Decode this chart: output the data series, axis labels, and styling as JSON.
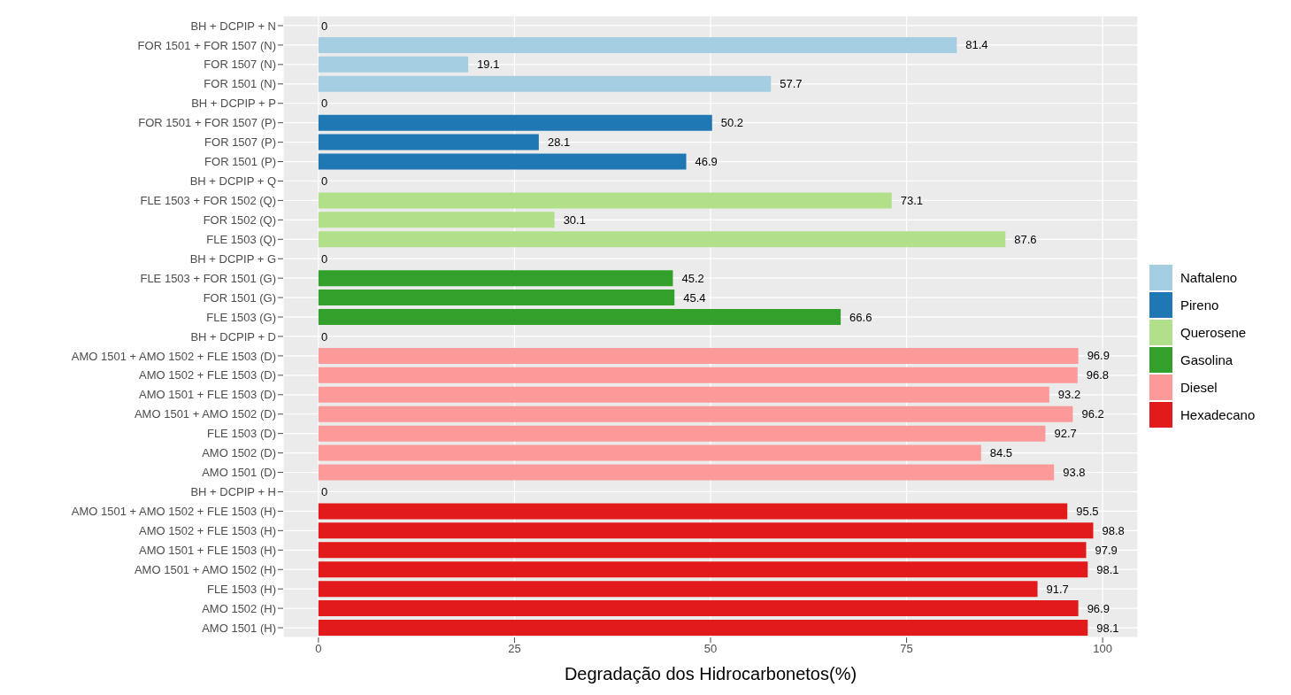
{
  "chart_data": {
    "type": "bar",
    "orientation": "horizontal",
    "xlabel": "Degradação dos Hidrocarbonetos(%)",
    "categories": [
      "BH + DCPIP + N",
      "FOR 1501 + FOR 1507 (N)",
      "FOR 1507 (N)",
      "FOR 1501 (N)",
      "BH + DCPIP + P",
      "FOR 1501 + FOR 1507 (P)",
      "FOR 1507 (P)",
      "FOR 1501 (P)",
      "BH + DCPIP + Q",
      "FLE 1503 + FOR 1502 (Q)",
      "FOR 1502 (Q)",
      "FLE 1503 (Q)",
      "BH + DCPIP + G",
      "FLE 1503 + FOR 1501 (G)",
      "FOR 1501 (G)",
      "FLE 1503 (G)",
      "BH + DCPIP + D",
      "AMO 1501 + AMO 1502 + FLE 1503 (D)",
      "AMO 1502 + FLE 1503 (D)",
      "AMO 1501 + FLE 1503 (D)",
      "AMO 1501 + AMO 1502 (D)",
      "FLE 1503 (D)",
      "AMO 1502 (D)",
      "AMO 1501 (D)",
      "BH + DCPIP + H",
      "AMO 1501 + AMO 1502 + FLE 1503 (H)",
      "AMO 1502 + FLE 1503 (H)",
      "AMO 1501 + FLE 1503 (H)",
      "AMO 1501 + AMO 1502 (H)",
      "FLE 1503 (H)",
      "AMO 1502 (H)",
      "AMO 1501 (H)"
    ],
    "series": [
      {
        "name": "Naftaleno",
        "color": "#a6cee3",
        "values": [
          0,
          81.4,
          19.1,
          57.7,
          null,
          null,
          null,
          null,
          null,
          null,
          null,
          null,
          null,
          null,
          null,
          null,
          null,
          null,
          null,
          null,
          null,
          null,
          null,
          null,
          null,
          null,
          null,
          null,
          null,
          null,
          null,
          null
        ]
      },
      {
        "name": "Pireno",
        "color": "#1f78b4",
        "values": [
          null,
          null,
          null,
          null,
          0,
          50.2,
          28.1,
          46.9,
          null,
          null,
          null,
          null,
          null,
          null,
          null,
          null,
          null,
          null,
          null,
          null,
          null,
          null,
          null,
          null,
          null,
          null,
          null,
          null,
          null,
          null,
          null,
          null
        ]
      },
      {
        "name": "Querosene",
        "color": "#b2df8a",
        "values": [
          null,
          null,
          null,
          null,
          null,
          null,
          null,
          null,
          0,
          73.1,
          30.1,
          87.6,
          null,
          null,
          null,
          null,
          null,
          null,
          null,
          null,
          null,
          null,
          null,
          null,
          null,
          null,
          null,
          null,
          null,
          null,
          null,
          null
        ]
      },
      {
        "name": "Gasolina",
        "color": "#33a02c",
        "values": [
          null,
          null,
          null,
          null,
          null,
          null,
          null,
          null,
          null,
          null,
          null,
          null,
          0,
          45.2,
          45.4,
          66.6,
          null,
          null,
          null,
          null,
          null,
          null,
          null,
          null,
          null,
          null,
          null,
          null,
          null,
          null,
          null,
          null
        ]
      },
      {
        "name": "Diesel",
        "color": "#fb9a99",
        "values": [
          null,
          null,
          null,
          null,
          null,
          null,
          null,
          null,
          null,
          null,
          null,
          null,
          null,
          null,
          null,
          null,
          0,
          96.9,
          96.8,
          93.2,
          96.2,
          92.7,
          84.5,
          93.8,
          null,
          null,
          null,
          null,
          null,
          null,
          null,
          null
        ]
      },
      {
        "name": "Hexadecano",
        "color": "#e31a1c",
        "values": [
          null,
          null,
          null,
          null,
          null,
          null,
          null,
          null,
          null,
          null,
          null,
          null,
          null,
          null,
          null,
          null,
          null,
          null,
          null,
          null,
          null,
          null,
          null,
          null,
          0,
          95.5,
          98.8,
          97.9,
          98.1,
          91.7,
          96.9,
          98.1
        ]
      }
    ],
    "xlim": [
      -4.5,
      104.5
    ],
    "xticks": [
      0,
      25,
      50,
      75,
      100
    ],
    "grid": true,
    "legend": "right",
    "data_labels": true
  }
}
